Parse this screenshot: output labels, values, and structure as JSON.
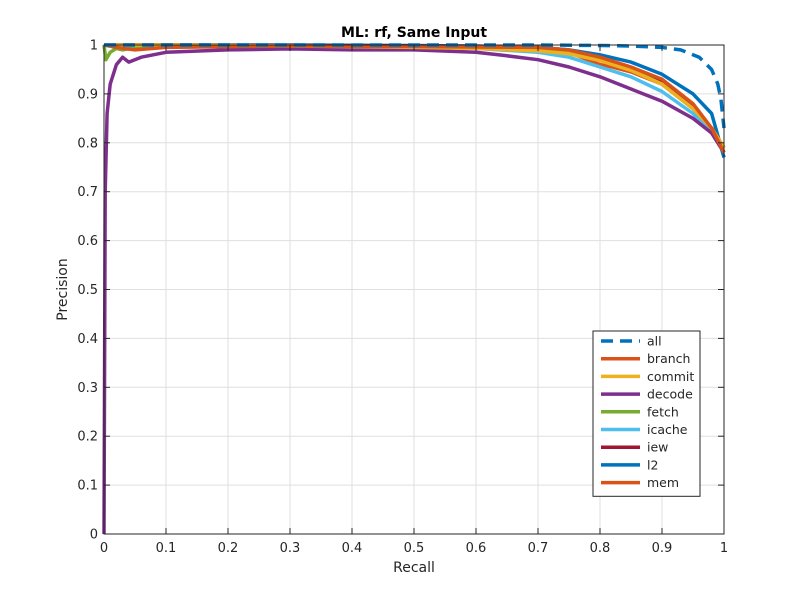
{
  "chart_data": {
    "type": "line",
    "title": "ML: rf, Same Input",
    "xlabel": "Recall",
    "ylabel": "Precision",
    "xlim": [
      0,
      1
    ],
    "ylim": [
      0,
      1
    ],
    "xticks": [
      "0",
      "0.1",
      "0.2",
      "0.3",
      "0.4",
      "0.5",
      "0.6",
      "0.7",
      "0.8",
      "0.9",
      "1"
    ],
    "yticks": [
      "0",
      "0.1",
      "0.2",
      "0.3",
      "0.4",
      "0.5",
      "0.6",
      "0.7",
      "0.8",
      "0.9",
      "1"
    ],
    "grid": true,
    "legend_position": "bottom-right",
    "series": [
      {
        "name": "all",
        "color": "#0072BD",
        "dash": true,
        "x": [
          0,
          0.5,
          0.7,
          0.8,
          0.85,
          0.9,
          0.93,
          0.96,
          0.98,
          0.99,
          0.995,
          1.0
        ],
        "y": [
          1.0,
          1.0,
          1.0,
          0.999,
          0.998,
          0.995,
          0.99,
          0.975,
          0.95,
          0.92,
          0.89,
          0.83
        ]
      },
      {
        "name": "branch",
        "color": "#D95319",
        "dash": false,
        "x": [
          0,
          0.02,
          0.05,
          0.1,
          0.3,
          0.5,
          0.6,
          0.7,
          0.75,
          0.8,
          0.85,
          0.9,
          0.95,
          0.98,
          1.0
        ],
        "y": [
          1.0,
          0.995,
          0.99,
          0.995,
          0.998,
          0.997,
          0.996,
          0.995,
          0.99,
          0.975,
          0.955,
          0.93,
          0.88,
          0.83,
          0.78
        ]
      },
      {
        "name": "commit",
        "color": "#EDB120",
        "dash": false,
        "x": [
          0,
          0.1,
          0.3,
          0.5,
          0.6,
          0.7,
          0.75,
          0.8,
          0.85,
          0.9,
          0.95,
          0.98,
          1.0
        ],
        "y": [
          1.0,
          1.0,
          0.998,
          0.995,
          0.993,
          0.988,
          0.982,
          0.968,
          0.948,
          0.92,
          0.87,
          0.83,
          0.79
        ]
      },
      {
        "name": "decode",
        "color": "#7E2F8E",
        "dash": false,
        "x": [
          0,
          0.002,
          0.005,
          0.01,
          0.02,
          0.03,
          0.04,
          0.06,
          0.1,
          0.2,
          0.3,
          0.4,
          0.5,
          0.6,
          0.65,
          0.7,
          0.75,
          0.8,
          0.85,
          0.9,
          0.95,
          0.98,
          1.0
        ],
        "y": [
          0,
          0.7,
          0.86,
          0.92,
          0.96,
          0.975,
          0.965,
          0.975,
          0.985,
          0.99,
          0.992,
          0.99,
          0.99,
          0.985,
          0.978,
          0.97,
          0.955,
          0.935,
          0.91,
          0.885,
          0.85,
          0.82,
          0.78
        ]
      },
      {
        "name": "fetch",
        "color": "#77AC30",
        "dash": false,
        "x": [
          0,
          0.003,
          0.01,
          0.02,
          0.03,
          0.05,
          0.1,
          0.3,
          0.5,
          0.7,
          0.75,
          0.8,
          0.85,
          0.9,
          0.95,
          0.98,
          1.0
        ],
        "y": [
          1.0,
          0.97,
          0.985,
          0.993,
          0.99,
          0.995,
          0.998,
          0.998,
          0.997,
          0.99,
          0.983,
          0.97,
          0.95,
          0.92,
          0.87,
          0.83,
          0.78
        ]
      },
      {
        "name": "icache",
        "color": "#4DBEEE",
        "dash": false,
        "x": [
          0,
          0.1,
          0.3,
          0.5,
          0.6,
          0.7,
          0.75,
          0.8,
          0.85,
          0.9,
          0.95,
          0.98,
          1.0
        ],
        "y": [
          1.0,
          0.999,
          0.998,
          0.996,
          0.993,
          0.985,
          0.975,
          0.955,
          0.935,
          0.905,
          0.86,
          0.82,
          0.78
        ]
      },
      {
        "name": "iew",
        "color": "#A2142F",
        "dash": false,
        "x": [
          0,
          0.1,
          0.3,
          0.5,
          0.6,
          0.7,
          0.75,
          0.8,
          0.85,
          0.9,
          0.95,
          0.98,
          1.0
        ],
        "y": [
          1.0,
          1.0,
          0.999,
          0.998,
          0.996,
          0.99,
          0.983,
          0.97,
          0.95,
          0.925,
          0.875,
          0.83,
          0.79
        ]
      },
      {
        "name": "l2",
        "color": "#0072BD",
        "dash": false,
        "x": [
          0,
          0.1,
          0.3,
          0.5,
          0.6,
          0.7,
          0.75,
          0.8,
          0.85,
          0.9,
          0.95,
          0.98,
          1.0
        ],
        "y": [
          1.0,
          1.0,
          1.0,
          0.999,
          0.998,
          0.995,
          0.99,
          0.98,
          0.965,
          0.94,
          0.9,
          0.86,
          0.77
        ]
      },
      {
        "name": "mem",
        "color": "#D95319",
        "dash": false,
        "x": [
          0,
          0.1,
          0.3,
          0.5,
          0.6,
          0.7,
          0.75,
          0.78,
          0.8,
          0.82,
          0.85,
          0.9,
          0.95,
          0.98,
          1.0
        ],
        "y": [
          1.0,
          1.0,
          0.999,
          0.998,
          0.996,
          0.99,
          0.985,
          0.97,
          0.96,
          0.955,
          0.945,
          0.92,
          0.87,
          0.83,
          0.78
        ]
      }
    ]
  }
}
